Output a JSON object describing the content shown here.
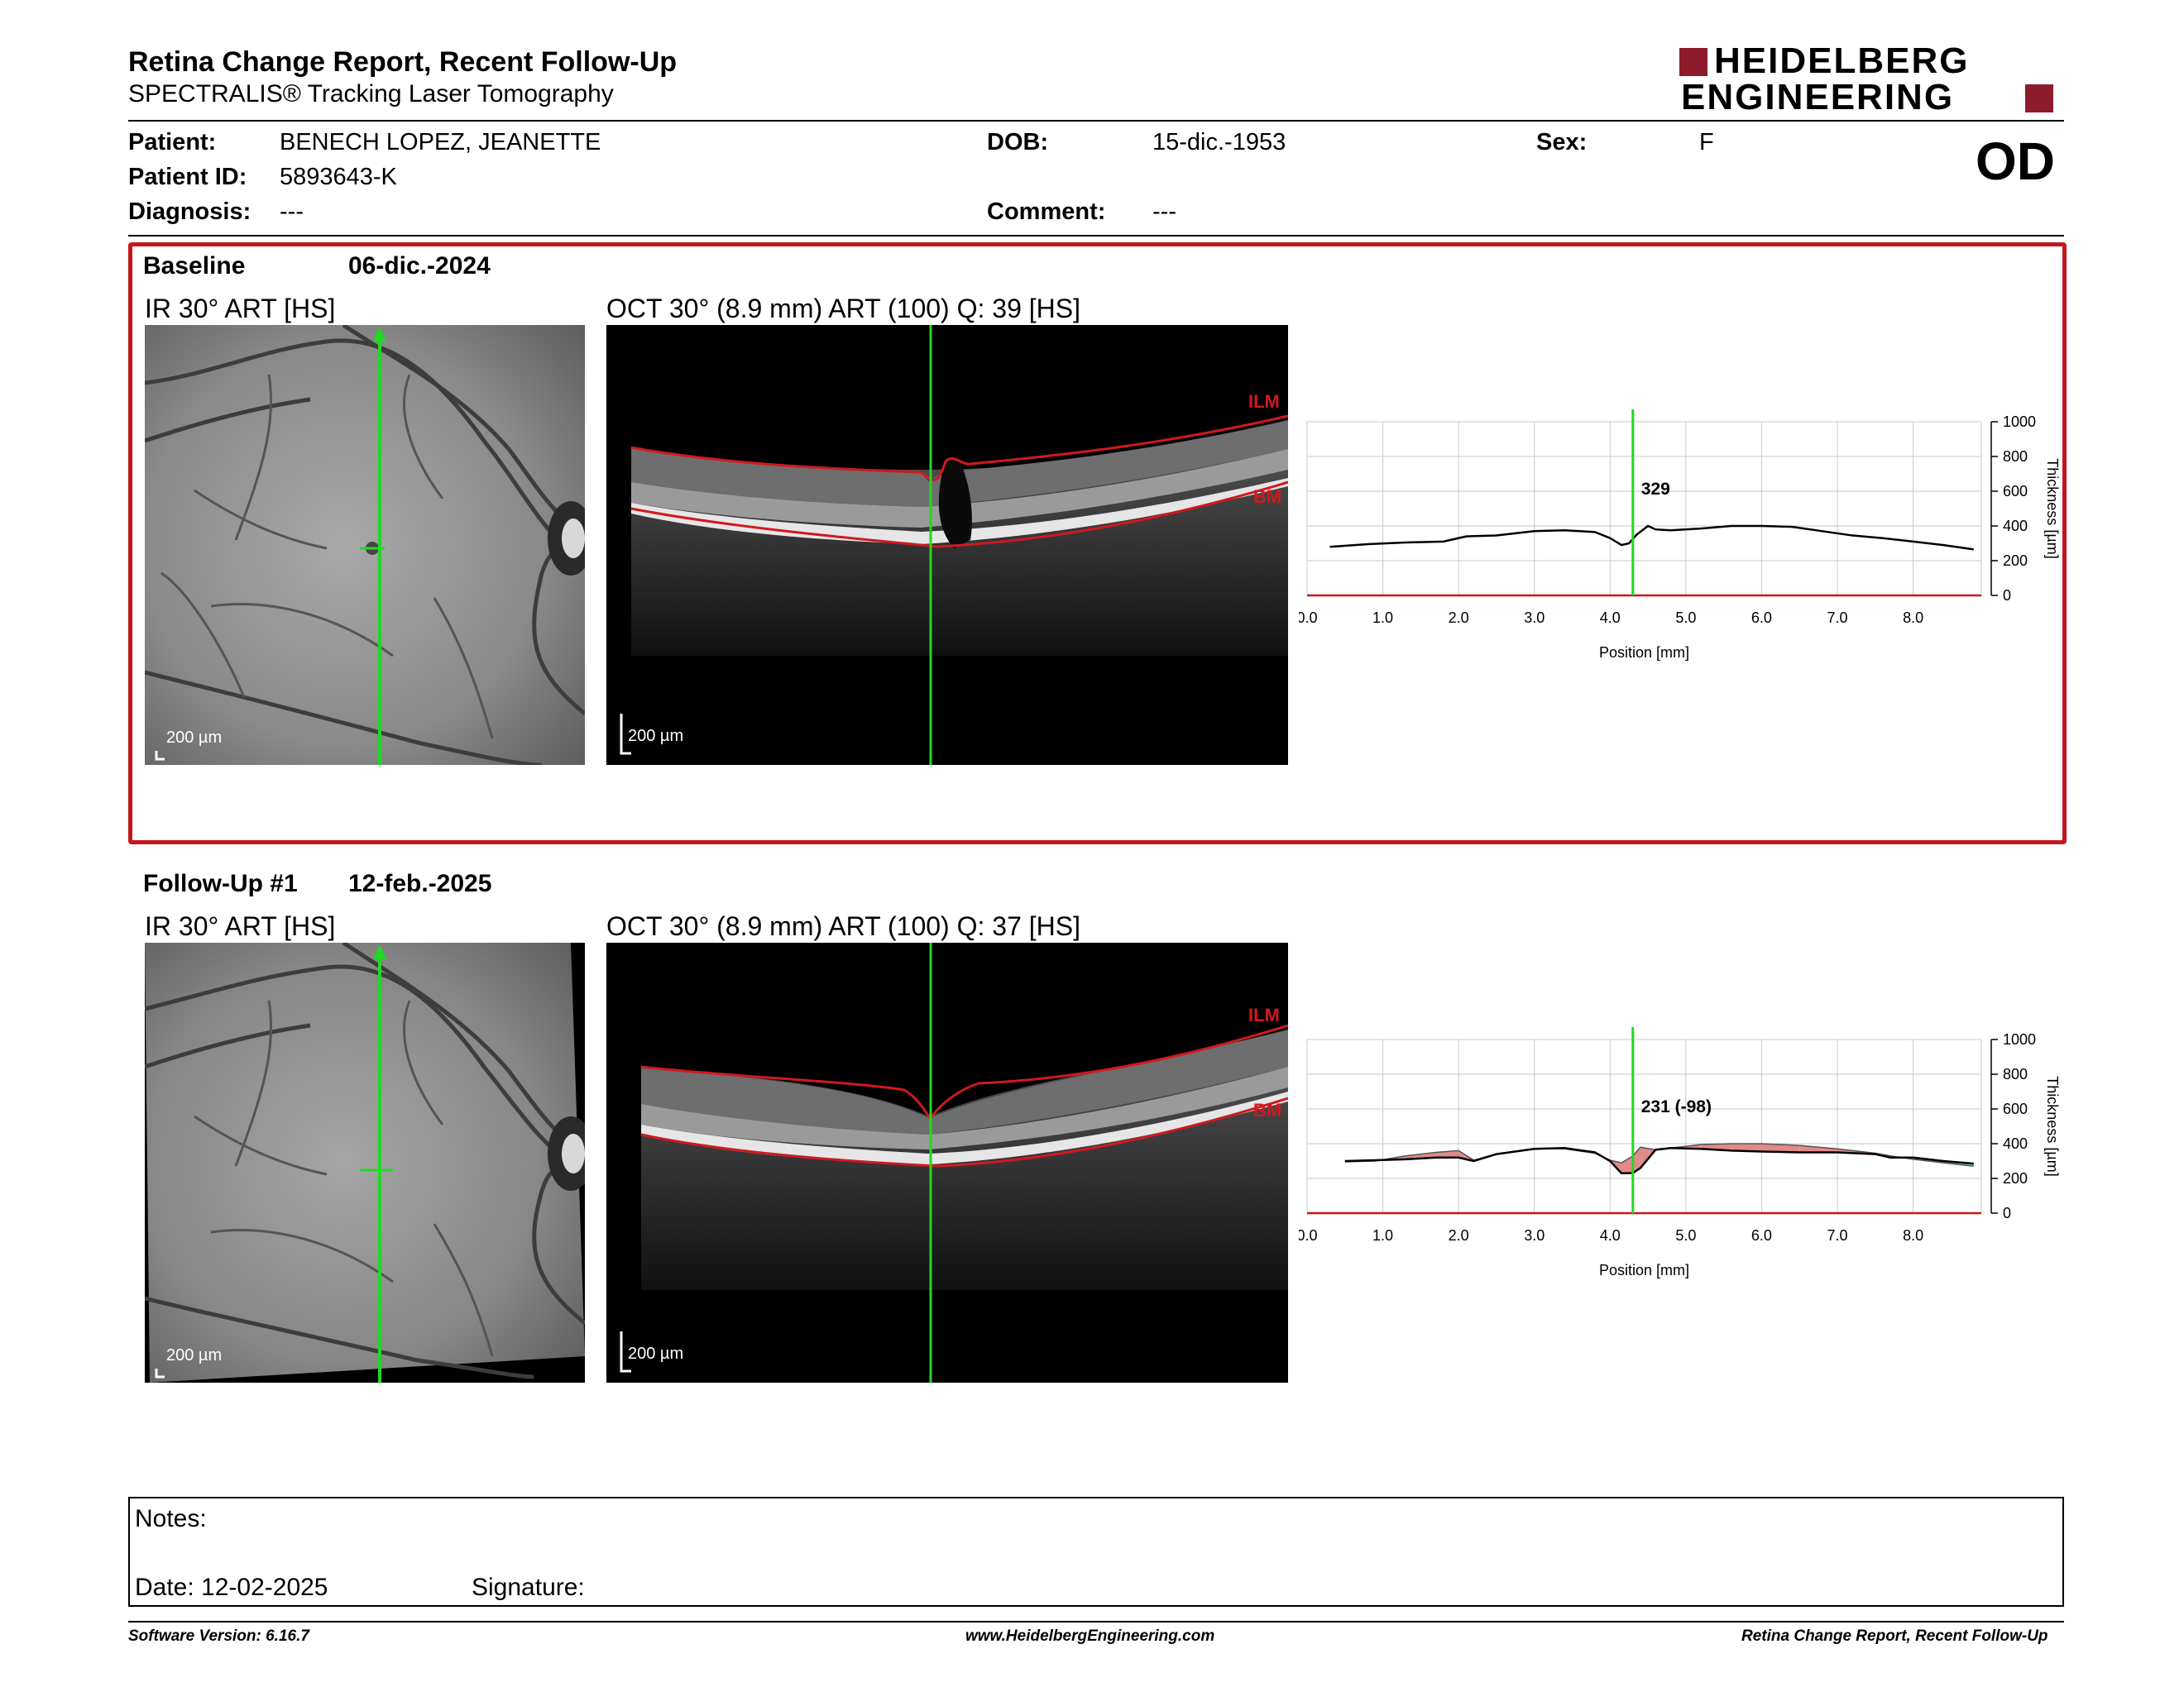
{
  "header": {
    "title": "Retina Change Report, Recent Follow-Up",
    "subtitle": "SPECTRALIS® Tracking Laser Tomography",
    "logo_line1": "HEIDELBERG",
    "logo_line2": "ENGINEERING",
    "eye": "OD"
  },
  "patient": {
    "patient_label": "Patient:",
    "patient_value": "BENECH LOPEZ, JEANETTE",
    "id_label": "Patient ID:",
    "id_value": "5893643-K",
    "diagnosis_label": "Diagnosis:",
    "diagnosis_value": "---",
    "dob_label": "DOB:",
    "dob_value": "15-dic.-1953",
    "comment_label": "Comment:",
    "comment_value": "---",
    "sex_label": "Sex:",
    "sex_value": "F"
  },
  "baseline": {
    "label": "Baseline",
    "date": "06-dic.-2024",
    "ir_label": "IR 30° ART [HS]",
    "oct_label": "OCT 30° (8.9 mm) ART (100) Q: 39 [HS]",
    "scale": "200 µm",
    "ilm": "ILM",
    "bm": "BM"
  },
  "followup": {
    "label": "Follow-Up #1",
    "date": "12-feb.-2025",
    "ir_label": "IR 30° ART [HS]",
    "oct_label": "OCT 30° (8.9 mm) ART (100) Q: 37 [HS]",
    "scale": "200 µm",
    "ilm": "ILM",
    "bm": "BM"
  },
  "notes": {
    "notes_label": "Notes:",
    "date_label": "Date: 12-02-2025",
    "signature_label": "Signature:"
  },
  "footer": {
    "left": "Software Version: 6.16.7",
    "center": "www.HeidelbergEngineering.com",
    "right": "Retina Change Report, Recent Follow-Up"
  },
  "colors": {
    "frame_red": "#c4161c",
    "cursor_green": "#22d822",
    "layer_red": "#d0191e",
    "gain": "#8fe08f",
    "loss": "#e08a8a"
  },
  "chart_data": [
    {
      "type": "line",
      "xlabel": "Position [mm]",
      "ylabel": "Thickness [µm]",
      "xlim": [
        0,
        8.9
      ],
      "ylim": [
        0,
        1000
      ],
      "x_ticks": [
        "0.0",
        "1.0",
        "2.0",
        "3.0",
        "4.0",
        "5.0",
        "6.0",
        "7.0",
        "8.0"
      ],
      "y_ticks": [
        "0",
        "200",
        "400",
        "600",
        "800",
        "1000"
      ],
      "cursor_x": 4.3,
      "cursor_label": "329",
      "series": [
        {
          "x": [
            0.3,
            0.8,
            1.3,
            1.8,
            2.1,
            2.5,
            3.0,
            3.4,
            3.8,
            4.0,
            4.15,
            4.25,
            4.35,
            4.5,
            4.6,
            4.8,
            5.2,
            5.6,
            6.0,
            6.4,
            6.8,
            7.2,
            7.6,
            8.0,
            8.4,
            8.8
          ],
          "y": [
            280,
            295,
            305,
            310,
            340,
            345,
            370,
            375,
            365,
            330,
            290,
            300,
            350,
            400,
            380,
            375,
            385,
            400,
            400,
            395,
            370,
            345,
            330,
            310,
            290,
            265
          ]
        }
      ]
    },
    {
      "type": "area",
      "xlabel": "Position [mm]",
      "ylabel": "Thickness [µm]",
      "xlim": [
        0,
        8.9
      ],
      "ylim": [
        0,
        1000
      ],
      "x_ticks": [
        "0.0",
        "1.0",
        "2.0",
        "3.0",
        "4.0",
        "5.0",
        "6.0",
        "7.0",
        "8.0"
      ],
      "y_ticks": [
        "0",
        "200",
        "400",
        "600",
        "800",
        "1000"
      ],
      "cursor_x": 4.3,
      "cursor_label": "231 (-98)",
      "series": [
        {
          "x": [
            0.5,
            0.9,
            1.3,
            1.7,
            2.0,
            2.2,
            2.5,
            3.0,
            3.4,
            3.8,
            4.0,
            4.15,
            4.3,
            4.4,
            4.6,
            4.8,
            5.2,
            5.6,
            6.0,
            6.5,
            7.0,
            7.5,
            7.7,
            8.0,
            8.4,
            8.8
          ],
          "y": [
            300,
            305,
            310,
            320,
            320,
            300,
            340,
            370,
            375,
            350,
            300,
            230,
            231,
            260,
            365,
            375,
            370,
            360,
            355,
            350,
            350,
            340,
            320,
            320,
            300,
            285
          ]
        },
        {
          "x": [
            0.5,
            0.9,
            1.3,
            1.7,
            2.0,
            2.2,
            2.5,
            3.0,
            3.4,
            3.8,
            4.0,
            4.15,
            4.3,
            4.4,
            4.6,
            4.8,
            5.2,
            5.6,
            6.0,
            6.5,
            7.0,
            7.5,
            7.7,
            8.0,
            8.4,
            8.8
          ],
          "y": [
            295,
            300,
            330,
            350,
            360,
            305,
            340,
            372,
            370,
            345,
            305,
            290,
            329,
            380,
            365,
            375,
            395,
            400,
            400,
            390,
            370,
            345,
            330,
            310,
            290,
            270
          ]
        }
      ]
    }
  ]
}
